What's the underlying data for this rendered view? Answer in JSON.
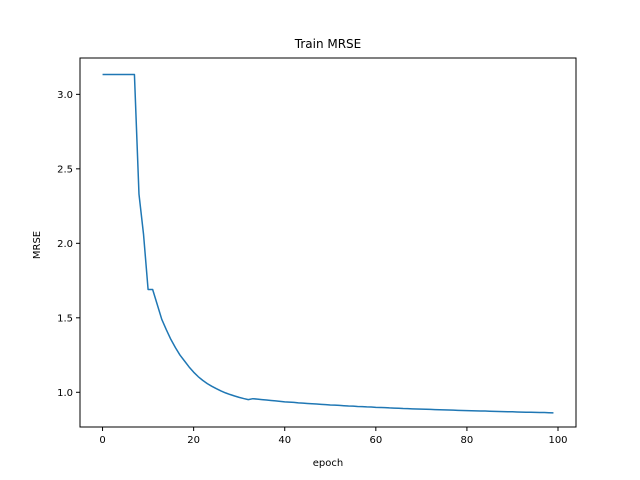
{
  "chart_data": {
    "type": "line",
    "title": "Train MRSE",
    "xlabel": "epoch",
    "ylabel": "MRSE",
    "xlim": [
      -4.95,
      103.95
    ],
    "ylim": [
      0.767,
      3.244
    ],
    "xticks": [
      0,
      20,
      40,
      60,
      80,
      100
    ],
    "yticks": [
      1.0,
      1.5,
      2.0,
      2.5,
      3.0
    ],
    "ytick_labels": [
      "1.0",
      "1.5",
      "2.0",
      "2.5",
      "3.0"
    ],
    "grid": false,
    "line_color": "#1f77b4",
    "series": [
      {
        "x": [
          0,
          1,
          2,
          3,
          4,
          5,
          6,
          7,
          8,
          9,
          10,
          11,
          12,
          13,
          14,
          15,
          16,
          17,
          18,
          19,
          20,
          21,
          22,
          23,
          24,
          25,
          26,
          27,
          28,
          29,
          30,
          31,
          32,
          33,
          34,
          35,
          36,
          37,
          38,
          39,
          40,
          41,
          42,
          43,
          44,
          45,
          46,
          47,
          48,
          49,
          50,
          51,
          52,
          53,
          54,
          55,
          56,
          57,
          58,
          59,
          60,
          61,
          62,
          63,
          64,
          65,
          66,
          67,
          68,
          69,
          70,
          71,
          72,
          73,
          74,
          75,
          76,
          77,
          78,
          79,
          80,
          81,
          82,
          83,
          84,
          85,
          86,
          87,
          88,
          89,
          90,
          91,
          92,
          93,
          94,
          95,
          96,
          97,
          98,
          99
        ],
        "y": [
          3.133,
          3.133,
          3.133,
          3.133,
          3.133,
          3.133,
          3.133,
          3.133,
          2.33,
          2.06,
          1.69,
          1.69,
          1.59,
          1.49,
          1.42,
          1.355,
          1.3,
          1.25,
          1.21,
          1.17,
          1.135,
          1.105,
          1.08,
          1.058,
          1.04,
          1.024,
          1.009,
          0.996,
          0.985,
          0.975,
          0.966,
          0.958,
          0.951,
          0.957,
          0.954,
          0.951,
          0.948,
          0.945,
          0.942,
          0.939,
          0.936,
          0.934,
          0.932,
          0.929,
          0.927,
          0.925,
          0.923,
          0.921,
          0.919,
          0.917,
          0.915,
          0.914,
          0.912,
          0.91,
          0.908,
          0.907,
          0.905,
          0.904,
          0.902,
          0.901,
          0.899,
          0.898,
          0.897,
          0.895,
          0.894,
          0.893,
          0.891,
          0.89,
          0.889,
          0.888,
          0.887,
          0.886,
          0.885,
          0.884,
          0.883,
          0.882,
          0.881,
          0.88,
          0.879,
          0.878,
          0.877,
          0.876,
          0.875,
          0.874,
          0.874,
          0.873,
          0.872,
          0.871,
          0.87,
          0.869,
          0.869,
          0.868,
          0.867,
          0.866,
          0.866,
          0.865,
          0.864,
          0.864,
          0.863,
          0.862
        ]
      }
    ]
  }
}
